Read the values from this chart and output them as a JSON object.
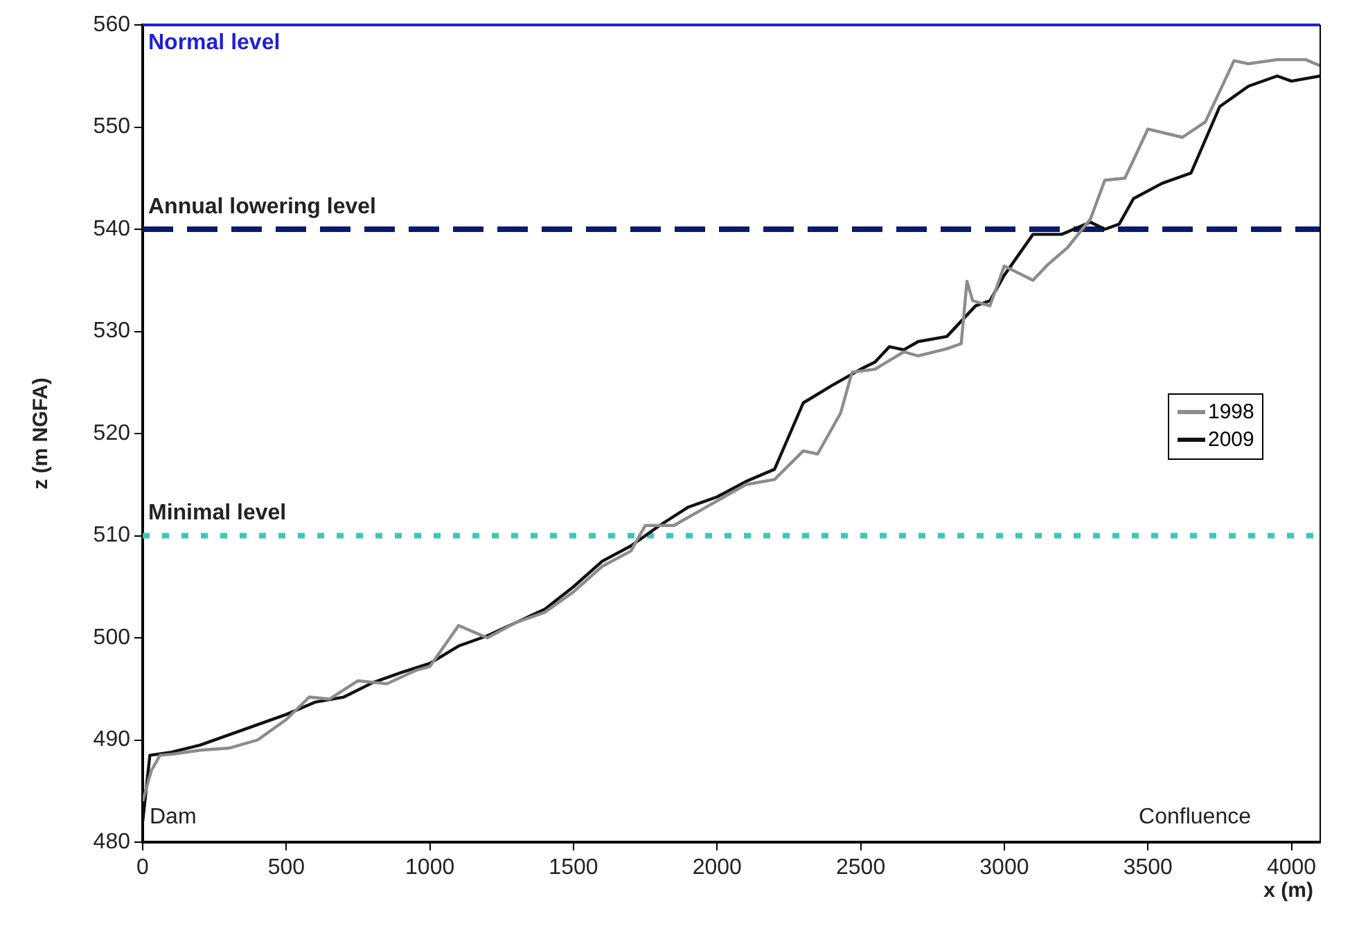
{
  "chart_data": {
    "type": "line",
    "xlabel": "x (m)",
    "ylabel": "z (m NGFA)",
    "xlim": [
      0,
      4100
    ],
    "xticks": [
      0,
      500,
      1000,
      1500,
      2000,
      2500,
      3000,
      3500,
      4000
    ],
    "ylim": [
      480,
      560
    ],
    "yticks": [
      480,
      490,
      500,
      510,
      520,
      530,
      540,
      550,
      560
    ],
    "grid": false,
    "legend": "right",
    "marker": "none",
    "annotations": [
      "Dam",
      "Confluence"
    ],
    "ref_lines": [
      {
        "axis": "y",
        "value": 560,
        "label": "Normal level",
        "color": "#1f1fd6",
        "line_style": "solid"
      },
      {
        "axis": "y",
        "value": 540,
        "label": "Annual lowering level",
        "color": "#0b1a6e",
        "line_style": "dashed"
      },
      {
        "axis": "y",
        "value": 510,
        "label": "Minimal level",
        "color": "#3cc8b4",
        "line_style": "dotted"
      }
    ],
    "series": [
      {
        "name": "1998",
        "color": "#8c8c8c",
        "x": [
          0,
          30,
          60,
          100,
          200,
          300,
          400,
          450,
          500,
          580,
          650,
          750,
          850,
          950,
          1000,
          1100,
          1200,
          1300,
          1400,
          1500,
          1600,
          1700,
          1750,
          1850,
          1950,
          2100,
          2200,
          2300,
          2350,
          2430,
          2470,
          2550,
          2650,
          2700,
          2800,
          2850,
          2870,
          2890,
          2950,
          3000,
          3100,
          3150,
          3220,
          3300,
          3350,
          3420,
          3500,
          3620,
          3700,
          3800,
          3850,
          3950,
          4050,
          4100
        ],
        "values": [
          484,
          487,
          488.5,
          488.6,
          489,
          489.2,
          490,
          491,
          492,
          494.2,
          494,
          495.8,
          495.5,
          496.8,
          497.2,
          501.2,
          500,
          501.5,
          502.5,
          504.5,
          507,
          508.5,
          511,
          511,
          512.6,
          515,
          515.5,
          518.3,
          518,
          522,
          526,
          526.3,
          528,
          527.6,
          528.3,
          528.8,
          534.9,
          533,
          532.5,
          536.4,
          535,
          536.5,
          538.2,
          541,
          544.8,
          545,
          549.8,
          549,
          550.5,
          556.5,
          556.2,
          556.6,
          556.6,
          556
        ]
      },
      {
        "name": "2009",
        "color": "#111111",
        "x": [
          0,
          25,
          100,
          200,
          300,
          400,
          500,
          600,
          700,
          800,
          900,
          1000,
          1100,
          1200,
          1300,
          1400,
          1500,
          1600,
          1700,
          1800,
          1900,
          2000,
          2100,
          2200,
          2300,
          2400,
          2500,
          2550,
          2600,
          2650,
          2700,
          2800,
          2900,
          2950,
          3000,
          3100,
          3200,
          3300,
          3350,
          3400,
          3450,
          3550,
          3650,
          3750,
          3850,
          3950,
          4000,
          4100
        ],
        "values": [
          482,
          488.5,
          488.8,
          489.5,
          490.5,
          491.5,
          492.5,
          493.7,
          494.2,
          495.6,
          496.6,
          497.5,
          499.2,
          500.2,
          501.5,
          502.8,
          505,
          507.5,
          509,
          511,
          512.8,
          513.8,
          515.3,
          516.5,
          523,
          524.7,
          526.3,
          527,
          528.5,
          528.2,
          529,
          529.5,
          532.5,
          533,
          535.5,
          539.5,
          539.5,
          540.7,
          540,
          540.5,
          543,
          544.5,
          545.5,
          552,
          554,
          555,
          554.5,
          555
        ]
      }
    ]
  }
}
